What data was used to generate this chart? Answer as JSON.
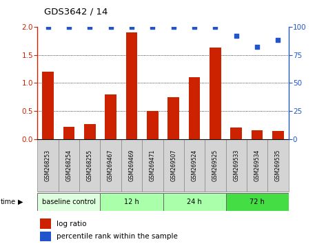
{
  "title": "GDS3642 / 14",
  "samples": [
    "GSM268253",
    "GSM268254",
    "GSM268255",
    "GSM269467",
    "GSM269469",
    "GSM269471",
    "GSM269507",
    "GSM269524",
    "GSM269525",
    "GSM269533",
    "GSM269534",
    "GSM269535"
  ],
  "log_ratio": [
    1.2,
    0.22,
    0.27,
    0.8,
    1.9,
    0.5,
    0.75,
    1.1,
    1.63,
    0.2,
    0.16,
    0.15
  ],
  "percentile_rank": [
    100,
    100,
    100,
    100,
    100,
    100,
    100,
    100,
    100,
    92,
    82,
    88
  ],
  "bar_color": "#cc2200",
  "dot_color": "#2255cc",
  "ylim_left": [
    0,
    2
  ],
  "ylim_right": [
    0,
    100
  ],
  "yticks_left": [
    0,
    0.5,
    1.0,
    1.5,
    2.0
  ],
  "yticks_right": [
    0,
    25,
    50,
    75,
    100
  ],
  "groups": [
    {
      "label": "baseline control",
      "start": 0,
      "end": 3,
      "color": "#ddffdd"
    },
    {
      "label": "12 h",
      "start": 3,
      "end": 6,
      "color": "#aaffaa"
    },
    {
      "label": "24 h",
      "start": 6,
      "end": 9,
      "color": "#aaffaa"
    },
    {
      "label": "72 h",
      "start": 9,
      "end": 12,
      "color": "#44dd44"
    }
  ],
  "legend_bar_label": "log ratio",
  "legend_dot_label": "percentile rank within the sample"
}
